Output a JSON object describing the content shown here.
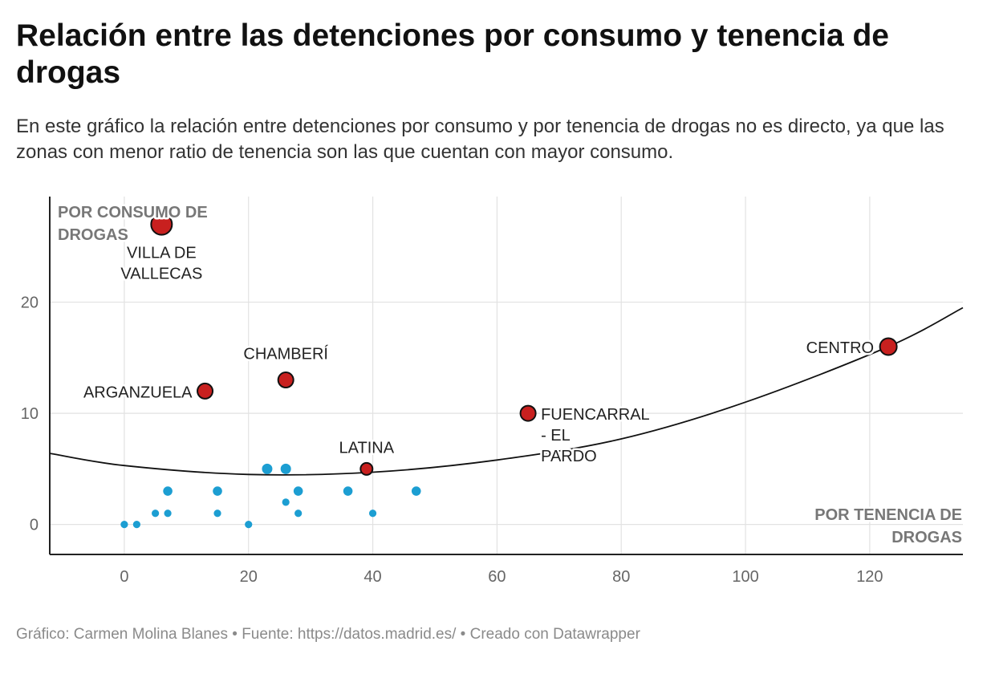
{
  "header": {
    "title": "Relación entre las detenciones por consumo y tenencia de drogas",
    "subtitle": "En este gráfico la relación entre detenciones por consumo y por tenencia de drogas no es directo, ya que las zonas con menor ratio de tenencia son las que cuentan con mayor consumo."
  },
  "footer": {
    "text": "Gráfico: Carmen Molina Blanes • Fuente: https://datos.madrid.es/ • Creado con Datawrapper"
  },
  "colors": {
    "highlight": "#c8201f",
    "regular": "#1c9ed2",
    "grid": "#e2e2e2",
    "axis": "#222222",
    "trend": "#111111",
    "axis_title": "#777777"
  },
  "chart_data": {
    "type": "scatter",
    "xlabel": "POR TENENCIA DE DROGAS",
    "ylabel": "POR CONSUMO DE DROGAS",
    "xlim": [
      -12,
      135
    ],
    "ylim": [
      -2.7,
      29.5
    ],
    "x_ticks": [
      0,
      20,
      40,
      60,
      80,
      100,
      120
    ],
    "y_ticks": [
      0,
      10,
      20
    ],
    "grid": true,
    "highlighted": [
      {
        "name": "VILLA DE VALLECAS",
        "x": 6,
        "y": 27
      },
      {
        "name": "CHAMBERÍ",
        "x": 26,
        "y": 13
      },
      {
        "name": "ARGANZUELA",
        "x": 13,
        "y": 12
      },
      {
        "name": "CENTRO",
        "x": 123,
        "y": 16
      },
      {
        "name": "FUENCARRAL - EL PARDO",
        "x": 65,
        "y": 10
      },
      {
        "name": "LATINA",
        "x": 39,
        "y": 5
      }
    ],
    "others": [
      {
        "x": 0,
        "y": 0
      },
      {
        "x": 2,
        "y": 0
      },
      {
        "x": 20,
        "y": 0
      },
      {
        "x": 5,
        "y": 1
      },
      {
        "x": 7,
        "y": 1
      },
      {
        "x": 15,
        "y": 1
      },
      {
        "x": 28,
        "y": 1
      },
      {
        "x": 40,
        "y": 1
      },
      {
        "x": 26,
        "y": 2
      },
      {
        "x": 7,
        "y": 3
      },
      {
        "x": 15,
        "y": 3
      },
      {
        "x": 28,
        "y": 3
      },
      {
        "x": 36,
        "y": 3
      },
      {
        "x": 47,
        "y": 3
      },
      {
        "x": 23,
        "y": 5
      },
      {
        "x": 26,
        "y": 5
      }
    ],
    "trendline": [
      {
        "x": -12,
        "y": 6.4
      },
      {
        "x": 0,
        "y": 5.3
      },
      {
        "x": 20,
        "y": 4.5
      },
      {
        "x": 40,
        "y": 4.7
      },
      {
        "x": 60,
        "y": 5.8
      },
      {
        "x": 80,
        "y": 7.7
      },
      {
        "x": 100,
        "y": 11.0
      },
      {
        "x": 123,
        "y": 16.0
      },
      {
        "x": 135,
        "y": 19.5
      }
    ]
  }
}
